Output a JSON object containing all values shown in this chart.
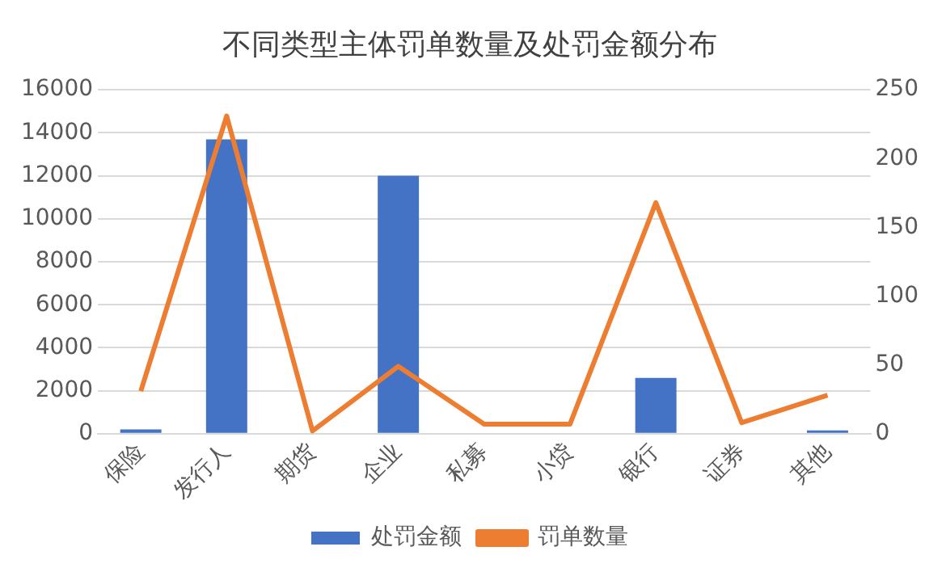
{
  "chart_data": {
    "type": "bar",
    "title": "不同类型主体罚单数量及处罚金额分布",
    "categories": [
      "保险",
      "发行人",
      "期货",
      "企业",
      "私募",
      "小贷",
      "银行",
      "证券",
      "其他"
    ],
    "series": [
      {
        "name": "处罚金额",
        "color": "#4472c4",
        "values": [
          200,
          13700,
          0,
          12000,
          0,
          0,
          2600,
          0,
          150
        ]
      },
      {
        "name": "罚单数量",
        "type": "line",
        "axis": "y2",
        "color": "#ed7d31",
        "values": [
          31,
          231,
          2,
          49,
          7,
          7,
          168,
          8,
          28
        ]
      }
    ],
    "ylim": [
      0,
      16000
    ],
    "yticks": [
      0,
      2000,
      4000,
      6000,
      8000,
      10000,
      12000,
      14000,
      16000
    ],
    "y2lim": [
      0,
      250
    ],
    "y2ticks": [
      0,
      50,
      100,
      150,
      200,
      250
    ],
    "grid": "y",
    "legend": "bottom",
    "marker": "none"
  }
}
